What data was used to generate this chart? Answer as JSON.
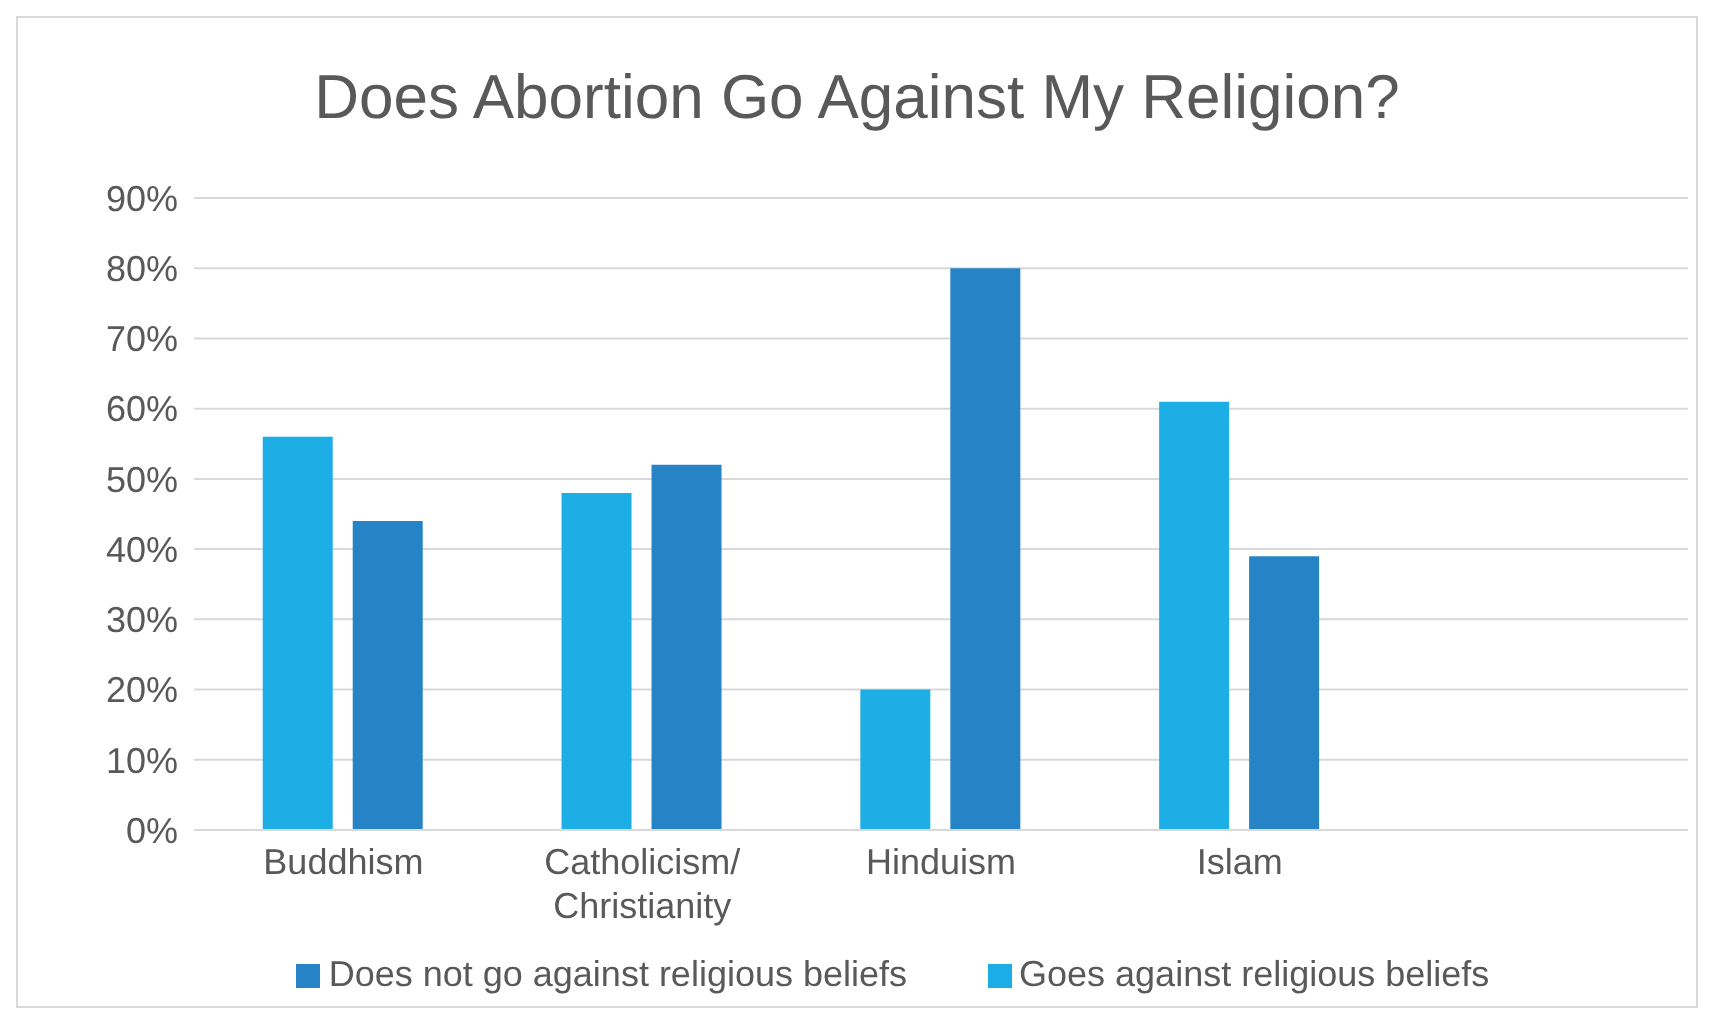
{
  "chart_data": {
    "type": "bar",
    "title": "Does Abortion Go Against My Religion?",
    "categories": [
      "Buddhism",
      "Catholicism/ Christianity",
      "Hinduism",
      "Islam",
      null
    ],
    "series": [
      {
        "name": "Goes against religious beliefs",
        "color": "#1eaee6",
        "values": [
          56,
          48,
          20,
          61,
          null
        ]
      },
      {
        "name": "Does not go against religious beliefs",
        "color": "#2683c6",
        "values": [
          44,
          52,
          80,
          39,
          null
        ]
      }
    ],
    "ylim": [
      0,
      90
    ],
    "yticks": [
      {
        "value": 0,
        "label": "0%"
      },
      {
        "value": 10,
        "label": "10%"
      },
      {
        "value": 20,
        "label": "20%"
      },
      {
        "value": 30,
        "label": "30%"
      },
      {
        "value": 40,
        "label": "40%"
      },
      {
        "value": 50,
        "label": "50%"
      },
      {
        "value": 60,
        "label": "60%"
      },
      {
        "value": 70,
        "label": "70%"
      },
      {
        "value": 80,
        "label": "80%"
      },
      {
        "value": 90,
        "label": "90%"
      }
    ],
    "grid": "y",
    "legend": "bottom"
  }
}
